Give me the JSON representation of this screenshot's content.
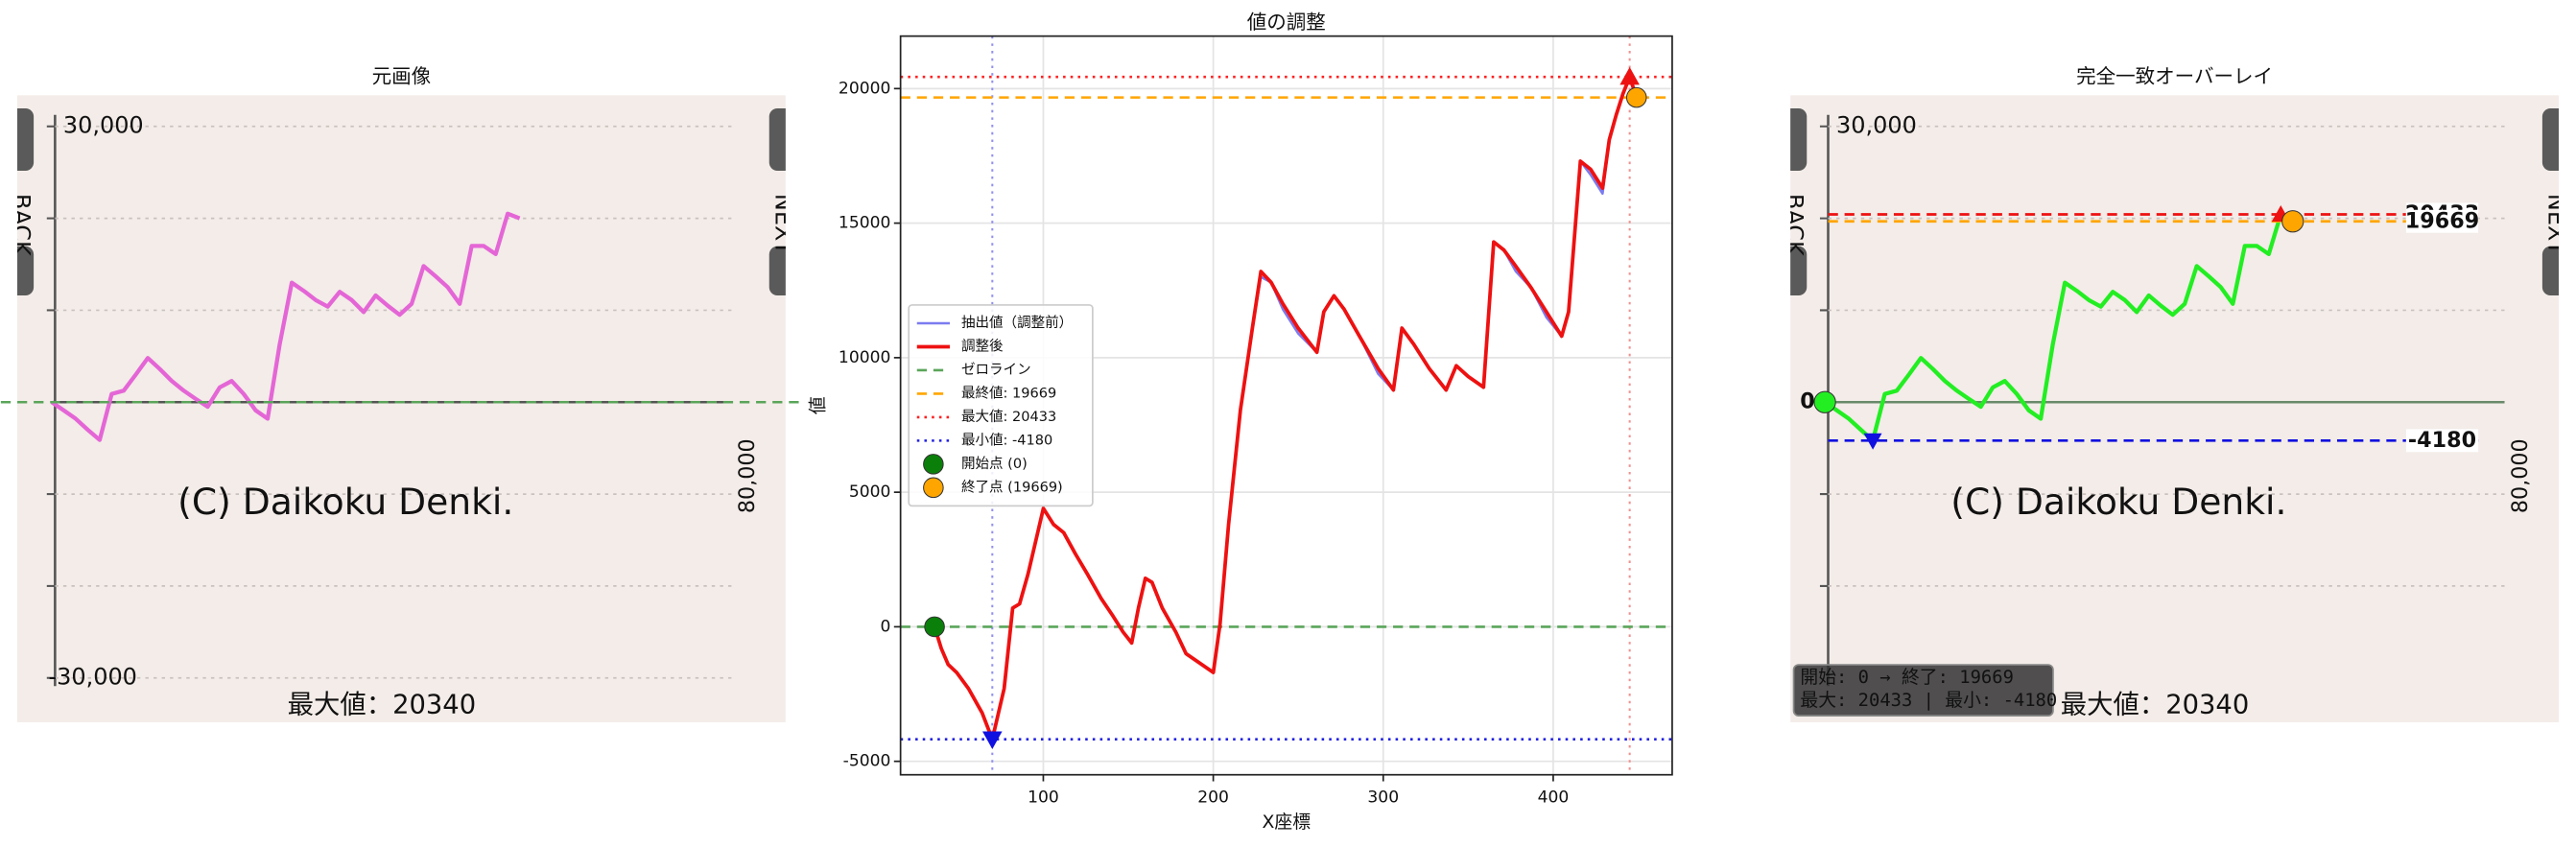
{
  "chart_data": [
    {
      "type": "image-line",
      "title": "元画像",
      "background": "#f3ece8",
      "ylim": [
        -30000,
        30000
      ],
      "yticks": [
        {
          "value": 30000,
          "label": "30,000"
        },
        {
          "value": -30000,
          "label": "-30,000"
        }
      ],
      "gridlines": [
        20000,
        10000,
        -10000,
        -20000
      ],
      "zero_lines": [
        {
          "value": 0,
          "color": "#555555",
          "style": "solid"
        },
        {
          "value": 0,
          "color": "#5aa55a",
          "style": "dashed",
          "span": "wide"
        }
      ],
      "nav": [
        "BACK",
        "NEXT"
      ],
      "side_label": "80,000",
      "watermark": "(C) Daikoku Denki.",
      "footer": "最大値：20340",
      "series": [
        {
          "color": "#e466d6",
          "values": [
            0,
            -900,
            -1800,
            -3000,
            -4100,
            900,
            1250,
            3000,
            4800,
            3600,
            2300,
            1250,
            350,
            -500,
            1600,
            2300,
            900,
            -900,
            -1800,
            6250,
            13000,
            12100,
            11100,
            10400,
            12000,
            11100,
            9800,
            11600,
            10500,
            9500,
            10700,
            14800,
            13700,
            12500,
            10700,
            17000,
            17000,
            16100,
            20500,
            20000
          ]
        }
      ]
    },
    {
      "type": "line",
      "title": "値の調整",
      "xlabel": "X座標",
      "ylabel": "値",
      "xlim": [
        16,
        470
      ],
      "ylim": [
        -5500,
        21950
      ],
      "xticks": [
        100,
        200,
        300,
        400
      ],
      "yticks": [
        -5000,
        0,
        5000,
        10000,
        15000,
        20000
      ],
      "grid": true,
      "legend": "center left",
      "x": [
        36,
        40,
        44,
        49,
        56,
        64,
        70,
        77,
        82,
        86,
        91,
        100,
        106,
        112,
        119,
        126,
        134,
        141,
        147,
        152,
        156,
        160,
        164,
        170,
        178,
        184,
        200,
        204,
        209,
        216,
        223,
        228,
        234,
        241,
        250,
        261,
        265,
        271,
        277,
        286,
        297,
        306,
        311,
        318,
        327,
        337,
        343,
        350,
        359,
        365,
        371,
        378,
        387,
        396,
        405,
        409,
        416,
        422,
        429,
        433,
        437,
        441,
        445,
        449
      ],
      "series": [
        {
          "name": "抽出値（調整前）",
          "color": "#7b7bf0",
          "width": 1.5,
          "values": [
            0,
            -800,
            -1400,
            -1700,
            -2300,
            -3200,
            -4180,
            -2300,
            700,
            850,
            1950,
            4400,
            3800,
            3500,
            2700,
            1950,
            1050,
            400,
            -200,
            -600,
            700,
            1800,
            1650,
            700,
            -200,
            -1000,
            -1700,
            100,
            3800,
            8050,
            11100,
            13000,
            12800,
            11800,
            10900,
            10200,
            11700,
            12300,
            11800,
            10800,
            9400,
            8800,
            11100,
            10500,
            9600,
            8800,
            9700,
            9300,
            8900,
            14300,
            14000,
            13200,
            12600,
            11500,
            10800,
            11700,
            17300,
            16800,
            16100,
            18100,
            19000,
            19800,
            20433,
            19669
          ]
        },
        {
          "name": "調整後",
          "color": "#ee1111",
          "width": 2.2,
          "values": [
            0,
            -800,
            -1400,
            -1700,
            -2300,
            -3200,
            -4180,
            -2300,
            700,
            850,
            1950,
            4400,
            3800,
            3500,
            2700,
            1950,
            1050,
            400,
            -200,
            -600,
            700,
            1800,
            1650,
            700,
            -200,
            -1000,
            -1700,
            100,
            3800,
            8050,
            11100,
            13200,
            12800,
            12000,
            11100,
            10200,
            11700,
            12300,
            11800,
            10800,
            9600,
            8800,
            11100,
            10500,
            9600,
            8800,
            9700,
            9300,
            8900,
            14300,
            14000,
            13400,
            12600,
            11700,
            10800,
            11700,
            17300,
            17000,
            16300,
            18100,
            19000,
            19800,
            20433,
            19669
          ]
        }
      ],
      "hlines": [
        {
          "name": "ゼロライン",
          "value": 0,
          "color": "#5aa55a",
          "style": "dashed"
        },
        {
          "name": "最終値: 19669",
          "value": 19669,
          "color": "#ffa500",
          "style": "dashed"
        },
        {
          "name": "最大値: 20433",
          "value": 20433,
          "color": "#ff2020",
          "style": "dotted"
        },
        {
          "name": "最小値: -4180",
          "value": -4180,
          "color": "#2020e0",
          "style": "dotted"
        }
      ],
      "vlines": [
        {
          "value": 70,
          "color": "#9090f0",
          "style": "dotted"
        },
        {
          "value": 445,
          "color": "#f09090",
          "style": "dotted"
        }
      ],
      "points": [
        {
          "name": "開始点 (0)",
          "x": 36,
          "y": 0,
          "color": "#0a800a",
          "marker": "circle"
        },
        {
          "name": "終了点 (19669)",
          "x": 449,
          "y": 19669,
          "color": "#ffa500",
          "marker": "circle"
        },
        {
          "x": 70,
          "y": -4180,
          "color": "#1010e0",
          "marker": "triangle-down"
        },
        {
          "x": 445,
          "y": 20433,
          "color": "#ee1111",
          "marker": "triangle-up"
        }
      ]
    },
    {
      "type": "image-line",
      "title": "完全一致オーバーレイ",
      "background": "#f3ece8",
      "ylim": [
        -30000,
        30000
      ],
      "yticks": [
        {
          "value": 30000,
          "label": "30,000"
        }
      ],
      "gridlines": [
        20000,
        10000,
        -10000,
        -20000
      ],
      "zero_lines": [
        {
          "value": 0,
          "color": "#6a8a6a",
          "style": "solid",
          "label_color": "#22dd22"
        }
      ],
      "nav": [
        "BACK",
        "NEXT"
      ],
      "side_label": "80,000",
      "watermark": "(C) Daikoku Denki.",
      "footer": "最大値：20340",
      "series": [
        {
          "color": "#22ee22",
          "values": [
            0,
            -900,
            -1800,
            -3000,
            -4180,
            900,
            1250,
            3000,
            4800,
            3600,
            2300,
            1250,
            350,
            -500,
            1600,
            2300,
            900,
            -900,
            -1800,
            6250,
            13000,
            12100,
            11100,
            10400,
            12000,
            11100,
            9800,
            11600,
            10500,
            9500,
            10700,
            14800,
            13700,
            12500,
            10700,
            17000,
            17000,
            16100,
            20433,
            19669
          ]
        }
      ],
      "hlines": [
        {
          "value": 20433,
          "color": "#ee1111",
          "style": "dashed"
        },
        {
          "value": 19669,
          "color": "#ffa500",
          "style": "dashed"
        },
        {
          "value": -4180,
          "color": "#1010e0",
          "style": "dashed"
        }
      ],
      "points": [
        {
          "y": 0,
          "color": "#22ee22",
          "marker": "circle"
        },
        {
          "y": -4180,
          "color": "#1010e0",
          "marker": "triangle-down"
        },
        {
          "y": 20433,
          "color": "#ee1111",
          "marker": "triangle-up"
        },
        {
          "y": 19669,
          "color": "#ffa500",
          "marker": "circle"
        }
      ],
      "info": [
        "開始: 0 → 終了: 19669",
        "最大: 20433 | 最小: -4180"
      ]
    }
  ]
}
